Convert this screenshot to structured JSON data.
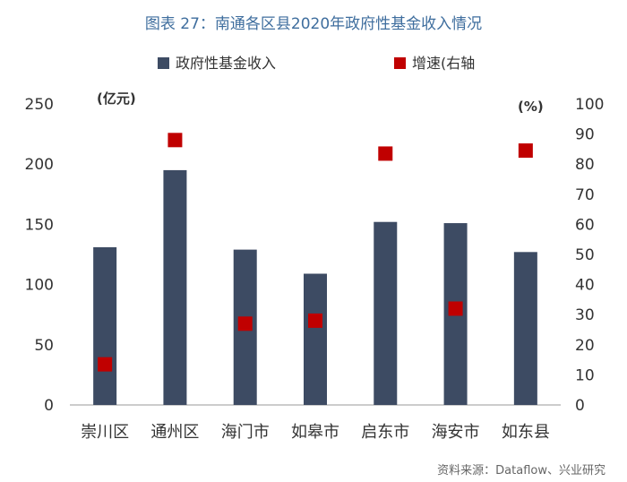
{
  "title": "图表 27：南通各区县2020年政府性基金收入情况",
  "source": "资料来源：Dataflow、兴业研究",
  "colors": {
    "bar": "#3d4b63",
    "marker": "#c00000",
    "title": "#3f6e9e"
  },
  "chart_data": {
    "type": "bar",
    "categories": [
      "崇川区",
      "通州区",
      "海门市",
      "如皋市",
      "启东市",
      "海安市",
      "如东县"
    ],
    "series": [
      {
        "name": "政府性基金收入",
        "type": "bar",
        "axis": "left",
        "values": [
          131,
          195,
          129,
          109,
          152,
          151,
          127
        ]
      },
      {
        "name": "增速(右轴",
        "type": "scatter",
        "axis": "right",
        "values": [
          13.5,
          88,
          27,
          28,
          83.5,
          32,
          84.5
        ]
      }
    ],
    "left_unit_label": "(亿元)",
    "right_unit_label": "(%)",
    "ylim_left": [
      0,
      250
    ],
    "yticks_left": [
      0,
      50,
      100,
      150,
      200,
      250
    ],
    "ylim_right": [
      0,
      100
    ],
    "yticks_right": [
      0,
      10,
      20,
      30,
      40,
      50,
      60,
      70,
      80,
      90,
      100
    ],
    "grid": false,
    "legend_position": "top"
  }
}
